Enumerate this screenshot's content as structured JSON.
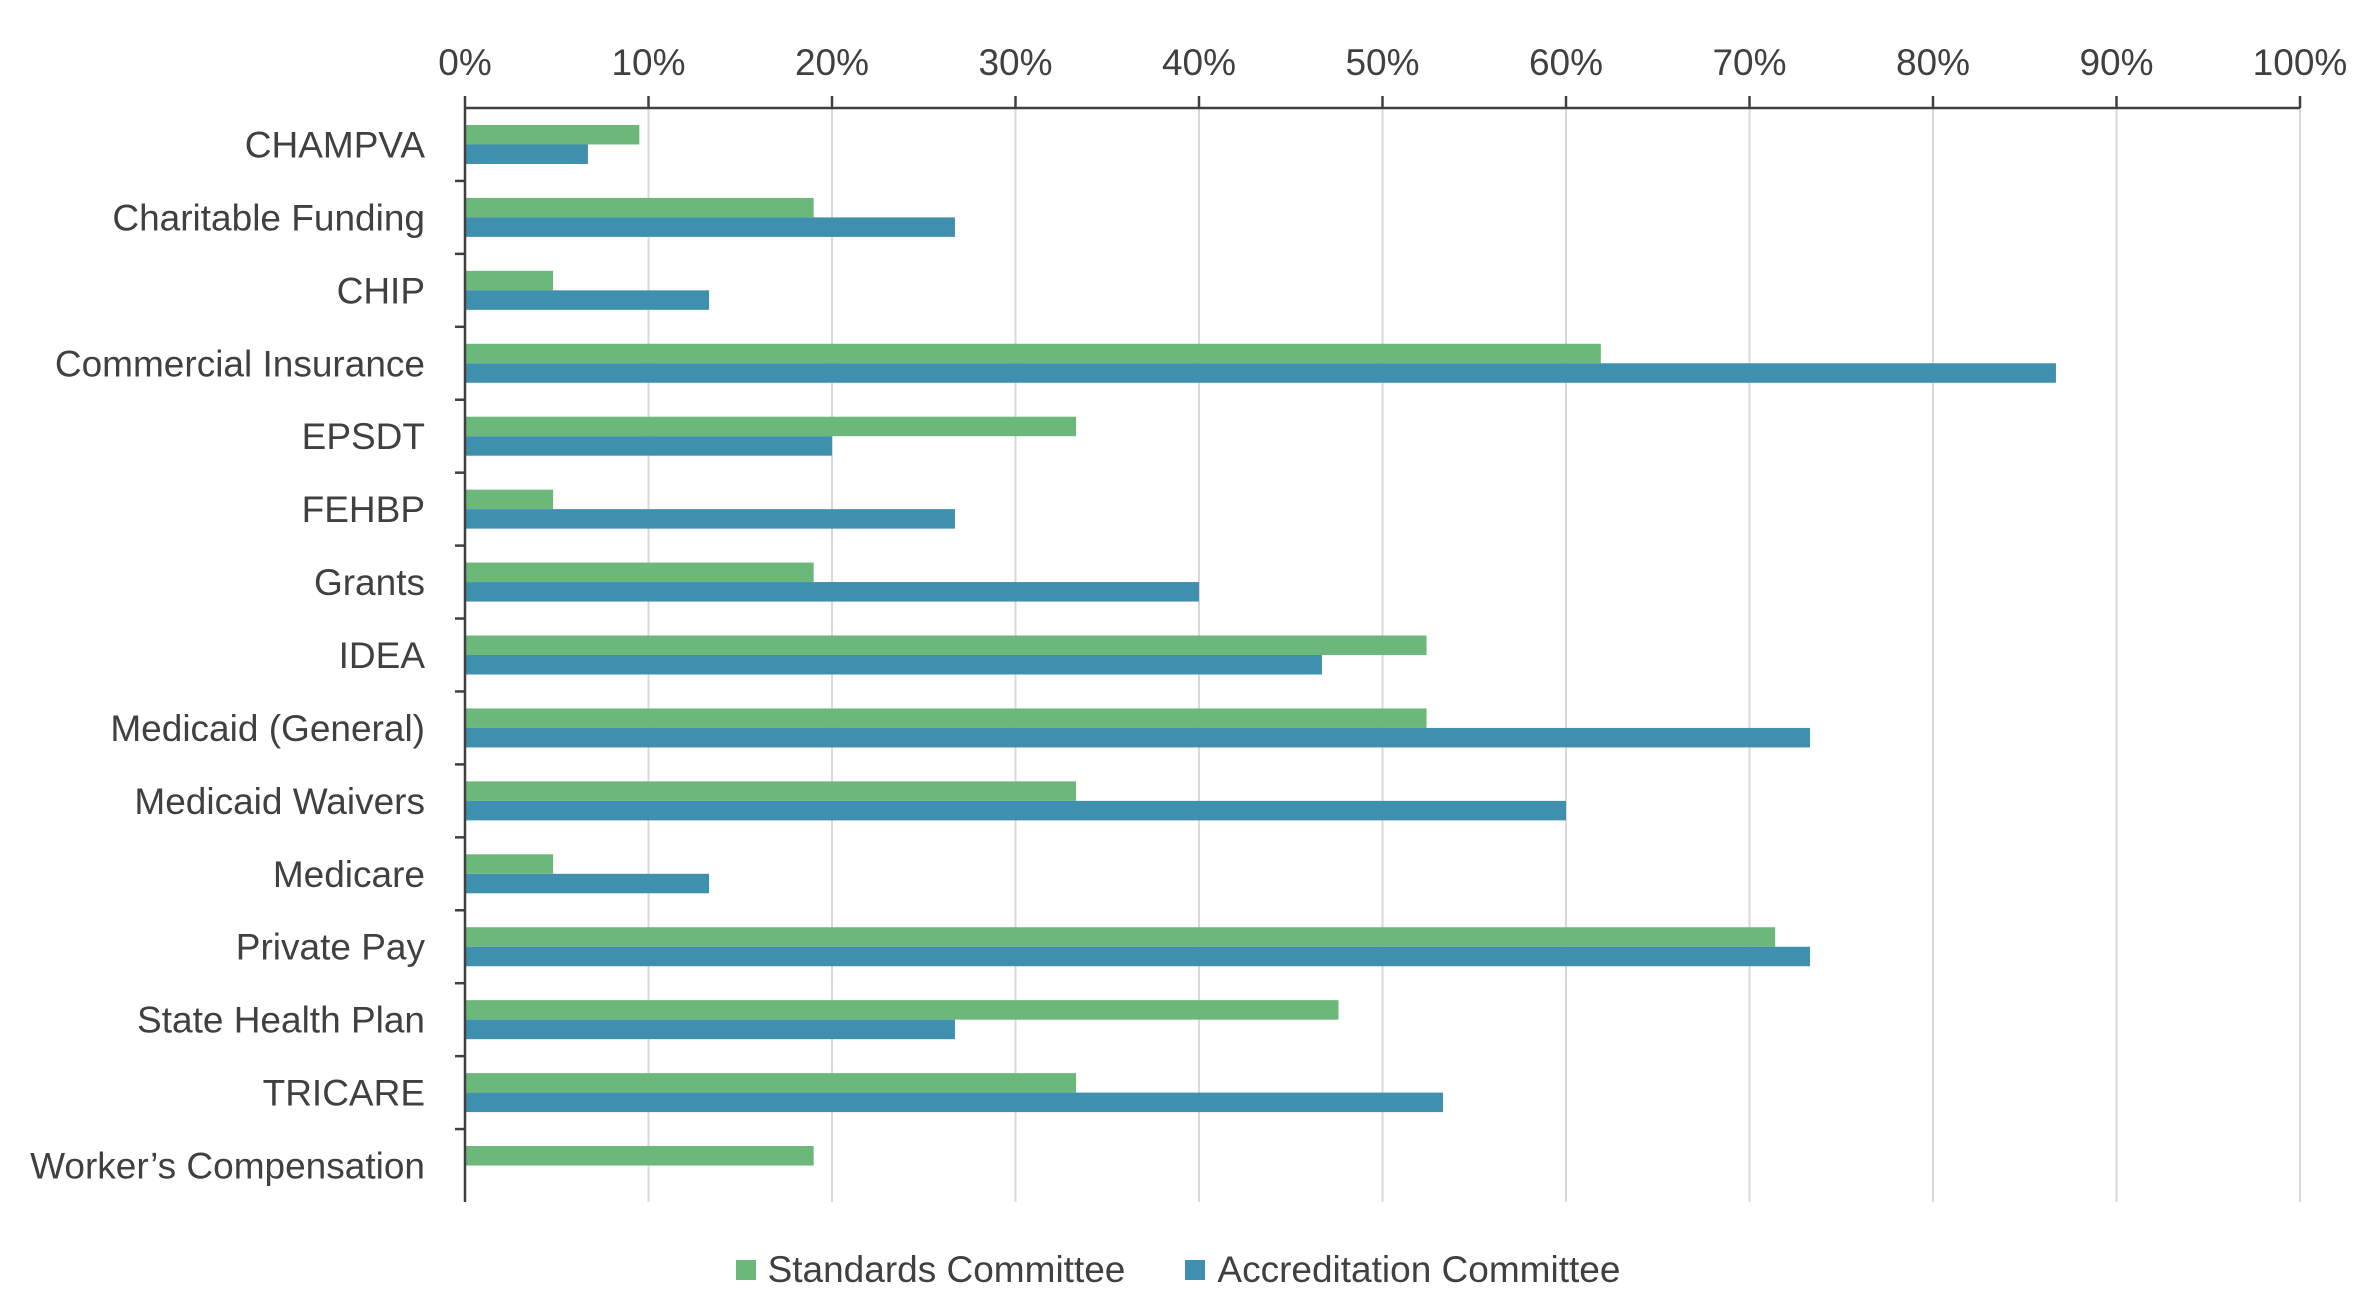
{
  "chart_data": {
    "type": "bar",
    "orientation": "horizontal",
    "categories": [
      "CHAMPVA",
      "Charitable Funding",
      "CHIP",
      "Commercial Insurance",
      "EPSDT",
      "FEHBP",
      "Grants",
      "IDEA",
      "Medicaid (General)",
      "Medicaid Waivers",
      "Medicare",
      "Private Pay",
      "State Health Plan",
      "TRICARE",
      "Worker’s Compensation"
    ],
    "series": [
      {
        "name": "Standards Committee",
        "color": "#6cb87a",
        "values": [
          9.5,
          19,
          4.8,
          61.9,
          33.3,
          4.8,
          19,
          52.4,
          52.4,
          33.3,
          4.8,
          71.4,
          47.6,
          33.3,
          19
        ]
      },
      {
        "name": "Accreditation Committee",
        "color": "#3f8fae",
        "values": [
          6.7,
          26.7,
          13.3,
          86.7,
          20,
          26.7,
          40,
          46.7,
          73.3,
          60,
          13.3,
          73.3,
          26.7,
          53.3,
          0
        ]
      }
    ],
    "xlim": [
      0,
      100
    ],
    "x_ticks": [
      "0%",
      "10%",
      "20%",
      "30%",
      "40%",
      "50%",
      "60%",
      "70%",
      "80%",
      "90%",
      "100%"
    ],
    "x_axis_position": "top",
    "grid": true,
    "legend_position": "bottom",
    "gridline_color": "#d9d9d9",
    "axis_color": "#404040"
  }
}
